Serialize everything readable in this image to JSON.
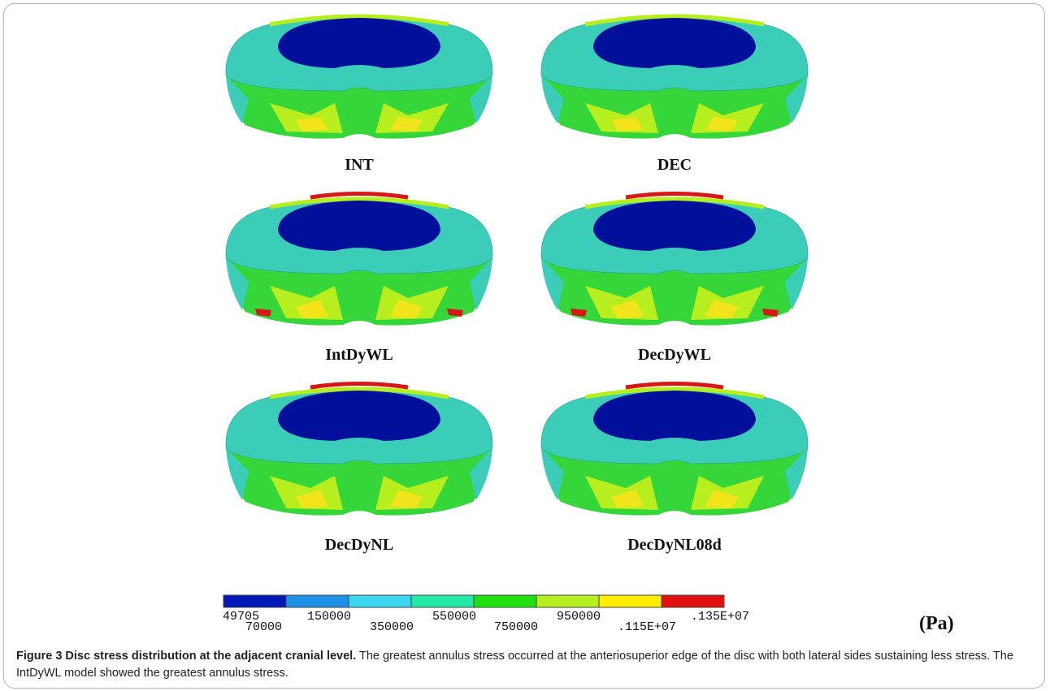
{
  "figure": {
    "panels": [
      {
        "label": "INT",
        "top_edge_red": false,
        "bottom_red": false
      },
      {
        "label": "DEC",
        "top_edge_red": false,
        "bottom_red": false
      },
      {
        "label": "IntDyWL",
        "top_edge_red": true,
        "bottom_red": true
      },
      {
        "label": "DecDyWL",
        "top_edge_red": true,
        "bottom_red": true
      },
      {
        "label": "DecDyNL",
        "top_edge_red": true,
        "bottom_red": false
      },
      {
        "label": "DecDyNL08d",
        "top_edge_red": true,
        "bottom_red": false
      }
    ],
    "colorbar": {
      "colors": [
        "#0018b8",
        "#1e90e8",
        "#3cd6f0",
        "#22e8a8",
        "#22e010",
        "#b6ee1e",
        "#ffee00",
        "#e01010"
      ],
      "labels": [
        "49705",
        "70000",
        "150000",
        "350000",
        "550000",
        "750000",
        "950000",
        ".115E+07",
        ".135E+07"
      ],
      "unit": "(Pa)"
    }
  },
  "caption": {
    "title": "Figure 3 Disc stress distribution at the adjacent cranial level.",
    "text": " The greatest annulus stress occurred at the anteriosuperior edge of the disc with both lateral sides sustaining less stress. The IntDyWL model showed the greatest annulus stress."
  },
  "colors": {
    "nucleus": "#00109a",
    "annulus_cyan": "#3ccdb8",
    "annulus_green": "#34d63a",
    "annulus_yellowgreen": "#b6ee1e",
    "annulus_yellow": "#f2e41a",
    "annulus_red": "#d81818"
  }
}
